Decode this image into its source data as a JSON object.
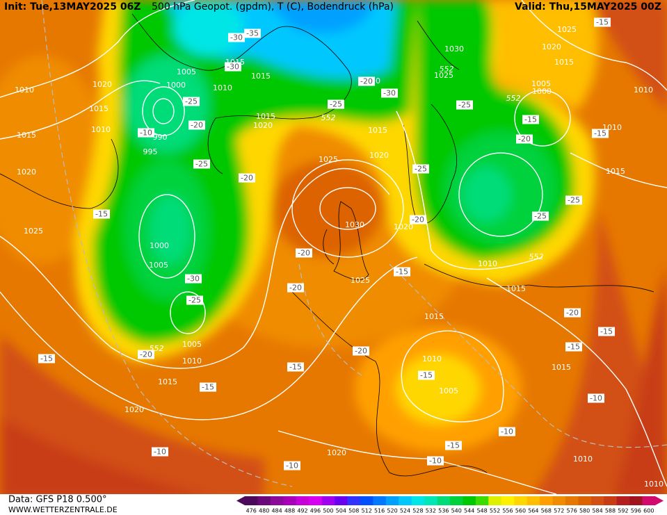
{
  "header": {
    "init": "Init: Tue,13MAY2025 06Z",
    "title": "500 hPa Geopot. (gpdm), T (C), Bodendruck (hPa)",
    "valid": "Valid: Thu,15MAY2025 00Z"
  },
  "footer": {
    "data": "Data: GFS P18 0.500°",
    "site": "WWW.WETTERZENTRALE.DE"
  },
  "color_scale": {
    "labels": [
      476,
      480,
      484,
      488,
      492,
      496,
      500,
      504,
      508,
      512,
      516,
      520,
      524,
      528,
      532,
      536,
      540,
      544,
      548,
      552,
      556,
      560,
      564,
      568,
      572,
      576,
      580,
      584,
      588,
      592,
      596,
      600
    ],
    "colors": [
      "#4b0a5a",
      "#6a0a7a",
      "#8a0a9a",
      "#a800b8",
      "#c800d8",
      "#d800f0",
      "#a000f0",
      "#6a00f0",
      "#3232ff",
      "#0050ff",
      "#0078ff",
      "#00a0ff",
      "#00c8ff",
      "#00e6e6",
      "#00e6b4",
      "#00dc78",
      "#00d23c",
      "#00c800",
      "#3cdc00",
      "#dcf000",
      "#fff000",
      "#ffd700",
      "#ffbe00",
      "#ffa000",
      "#f08c00",
      "#e67800",
      "#dc6400",
      "#d25014",
      "#c83c14",
      "#b41e1e",
      "#a0141e",
      "#d20a6e"
    ]
  },
  "isobar_labels": [
    "1010",
    "1020",
    "1015",
    "1010",
    "1015",
    "1020",
    "1025",
    "1005",
    "1000",
    "990",
    "995",
    "1015",
    "1015",
    "1010",
    "1015",
    "1020",
    "1025",
    "1015",
    "1020",
    "1030",
    "1020",
    "1025",
    "1000",
    "1005",
    "1005",
    "1010",
    "1015",
    "1020",
    "1030",
    "1025",
    "1025",
    "1020",
    "1015",
    "1005",
    "1000",
    "1010",
    "1010",
    "1015",
    "1010",
    "1015",
    "1015",
    "1010",
    "1005",
    "1020",
    "1010",
    "1010",
    "1015",
    "1010"
  ],
  "height_labels": [
    "552",
    "552",
    "552",
    "552",
    "552"
  ],
  "temperature_labels": [
    "-35",
    "-30",
    "-30",
    "-25",
    "-20",
    "-25",
    "-20",
    "-10",
    "-20",
    "-30",
    "-25",
    "-25",
    "-20",
    "-15",
    "-25",
    "-20",
    "-25",
    "-25",
    "-15",
    "-20",
    "-20",
    "-15",
    "-30",
    "-25",
    "-20",
    "-15",
    "-15",
    "-15",
    "-20",
    "-15",
    "-15",
    "-10",
    "-10",
    "-10",
    "-10",
    "-10",
    "-15",
    "-15",
    "-20",
    "-15",
    "-15"
  ]
}
